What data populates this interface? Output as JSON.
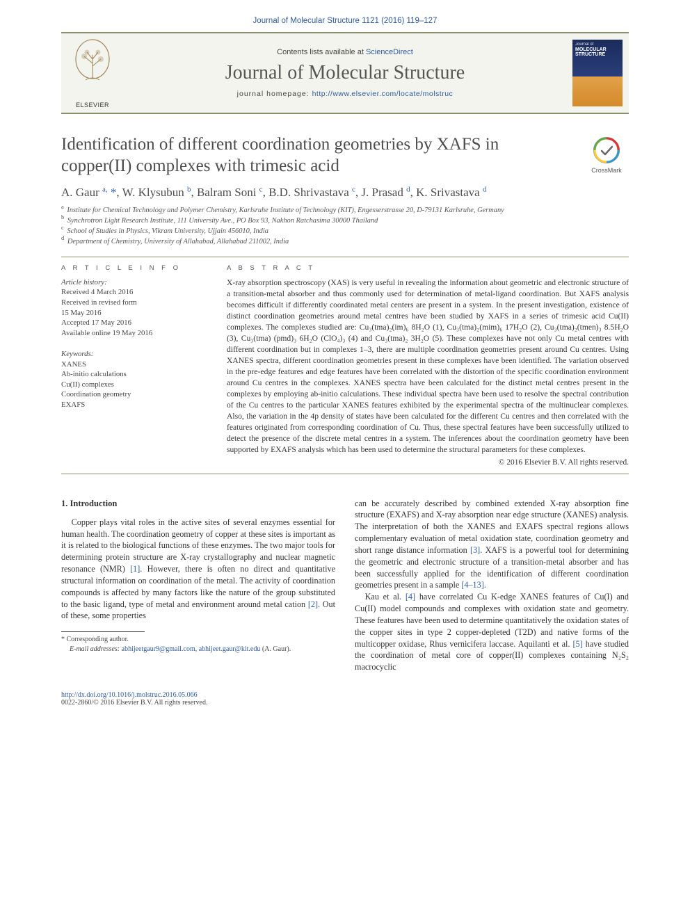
{
  "citation": {
    "text": "Journal of Molecular Structure 1121 (2016) 119–127"
  },
  "masthead": {
    "contents_prefix": "Contents lists available at ",
    "contents_link": "ScienceDirect",
    "journal_name": "Journal of Molecular Structure",
    "homepage_prefix": "journal homepage: ",
    "homepage_url": "http://www.elsevier.com/locate/molstruc",
    "elsevier_label": "ELSEVIER",
    "cover_text": "MOLECULAR STRUCTURE"
  },
  "crossmark": {
    "label": "CrossMark"
  },
  "article": {
    "title": "Identification of different coordination geometries by XAFS in copper(II) complexes with trimesic acid",
    "authors_html": "A. Gaur <sup>a,</sup> <span class='star'>*</span>, W. Klysubun <sup>b</sup>, Balram Soni <sup>c</sup>, B.D. Shrivastava <sup>c</sup>, J. Prasad <sup>d</sup>, K. Srivastava <sup>d</sup>",
    "affiliations": [
      {
        "sup": "a",
        "text": "Institute for Chemical Technology and Polymer Chemistry, Karlsruhe Institute of Technology (KIT), Engesserstrasse 20, D-79131 Karlsruhe, Germany"
      },
      {
        "sup": "b",
        "text": "Synchrotron Light Research Institute, 111 University Ave., PO Box 93, Nakhon Ratchasima 30000 Thailand"
      },
      {
        "sup": "c",
        "text": "School of Studies in Physics, Vikram University, Ujjain 456010, India"
      },
      {
        "sup": "d",
        "text": "Department of Chemistry, University of Allahabad, Allahabad 211002, India"
      }
    ]
  },
  "info": {
    "label": "A R T I C L E   I N F O",
    "history_label": "Article history:",
    "history_lines": [
      "Received 4 March 2016",
      "Received in revised form",
      "15 May 2016",
      "Accepted 17 May 2016",
      "Available online 19 May 2016"
    ],
    "keywords_label": "Keywords:",
    "keywords": [
      "XANES",
      "Ab-initio calculations",
      "Cu(II) complexes",
      "Coordination geometry",
      "EXAFS"
    ]
  },
  "abstract": {
    "label": "A B S T R A C T",
    "text": "X-ray absorption spectroscopy (XAS) is very useful in revealing the information about geometric and electronic structure of a transition-metal absorber and thus commonly used for determination of metal-ligand coordination. But XAFS analysis becomes difficult if differently coordinated metal centers are present in a system. In the present investigation, existence of distinct coordination geometries around metal centres have been studied by XAFS in a series of trimesic acid Cu(II) complexes. The complexes studied are: Cu₃(tma)₂(im)₆ 8H₂O (1), Cu₃(tma)₂(mim)₆ 17H₂O (2), Cu₃(tma)₂(tmen)₃ 8.5H₂O (3), Cu₃(tma) (pmd)₃ 6H₂O (ClO₄)₃ (4) and Cu₃(tma)₂ 3H₂O (5). These complexes have not only Cu metal centres with different coordination but in complexes 1–3, there are multiple coordination geometries present around Cu centres. Using XANES spectra, different coordination geometries present in these complexes have been identified. The variation observed in the pre-edge features and edge features have been correlated with the distortion of the specific coordination environment around Cu centres in the complexes. XANES spectra have been calculated for the distinct metal centres present in the complexes by employing ab-initio calculations. These individual spectra have been used to resolve the spectral contribution of the Cu centres to the particular XANES features exhibited by the experimental spectra of the multinuclear complexes. Also, the variation in the 4p density of states have been calculated for the different Cu centres and then correlated with the features originated from corresponding coordination of Cu. Thus, these spectral features have been successfully utilized to detect the presence of the discrete metal centres in a system. The inferences about the coordination geometry have been supported by EXAFS analysis which has been used to determine the structural parameters for these complexes.",
    "copyright_line": "© 2016 Elsevier B.V. All rights reserved."
  },
  "body": {
    "heading": "1. Introduction",
    "col1": "Copper plays vital roles in the active sites of several enzymes essential for human health. The coordination geometry of copper at these sites is important as it is related to the biological functions of these enzymes. The two major tools for determining protein structure are X-ray crystallography and nuclear magnetic resonance (NMR) <span class='ref-link'>[1]</span>. However, there is often no direct and quantitative structural information on coordination of the metal. The activity of coordination compounds is affected by many factors like the nature of the group substituted to the basic ligand, type of metal and environment around metal cation <span class='ref-link'>[2]</span>. Out of these, some properties",
    "col2_p1": "can be accurately described by combined extended X-ray absorption fine structure (EXAFS) and X-ray absorption near edge structure (XANES) analysis. The interpretation of both the XANES and EXAFS spectral regions allows complementary evaluation of metal oxidation state, coordination geometry and short range distance information <span class='ref-link'>[3]</span>. XAFS is a powerful tool for determining the geometric and electronic structure of a transition-metal absorber and has been successfully applied for the identification of different coordination geometries present in a sample <span class='ref-link'>[4–13]</span>.",
    "col2_p2": "Kau et al. <span class='ref-link'>[4]</span> have correlated Cu K-edge XANES features of Cu(I) and Cu(II) model compounds and complexes with oxidation state and geometry. These features have been used to determine quantitatively the oxidation states of the copper sites in type 2 copper-depleted (T2D) and native forms of the multicopper oxidase, Rhus vernicifera laccase. Aquilanti et al. <span class='ref-link'>[5]</span> have studied the coordination of metal core of copper(II) complexes containing N₂S₂ macrocyclic"
  },
  "footnote": {
    "corr_label": "* Corresponding author.",
    "email_label": "E-mail addresses:",
    "emails": "abhijeetgaur9@gmail.com, abhijeet.gaur@kit.edu",
    "email_name": "(A. Gaur)."
  },
  "footer": {
    "doi_url": "http://dx.doi.org/10.1016/j.molstruc.2016.05.066",
    "issn_line": "0022-2860/© 2016 Elsevier B.V. All rights reserved."
  },
  "colors": {
    "accent": "#8a8e6a",
    "link": "#2e5a9c",
    "heading": "#4c4c4c"
  }
}
